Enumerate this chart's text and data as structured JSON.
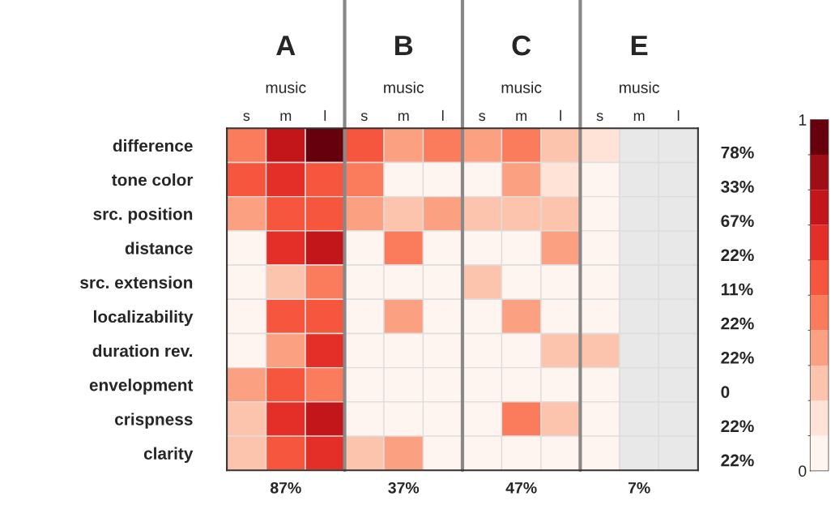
{
  "chart_data": {
    "type": "heatmap",
    "categories": [
      "s",
      "m",
      "l",
      "s",
      "m",
      "l",
      "s",
      "m",
      "l",
      "s",
      "m",
      "l"
    ],
    "y_categories": [
      "difference",
      "tone color",
      "src. position",
      "distance",
      "src. extension",
      "localizability",
      "duration rev.",
      "envelopment",
      "crispness",
      "clarity"
    ],
    "y2_categories": [
      "78%",
      "33%",
      "67%",
      "22%",
      "11%",
      "22%",
      "22%",
      "0",
      "22%",
      "22%"
    ],
    "cells": [
      [
        0.45,
        0.75,
        0.95,
        0.55,
        0.35,
        0.45,
        0.35,
        0.45,
        0.25,
        0.15,
        null,
        null
      ],
      [
        0.55,
        0.65,
        0.55,
        0.45,
        0,
        0,
        0,
        0.35,
        0.15,
        0,
        null,
        null
      ],
      [
        0.35,
        0.55,
        0.55,
        0.35,
        0.25,
        0.35,
        0.25,
        0.25,
        0.25,
        0,
        null,
        null
      ],
      [
        0,
        0.65,
        0.75,
        0,
        0.45,
        0,
        0,
        0,
        0.35,
        0,
        null,
        null
      ],
      [
        0,
        0.25,
        0.45,
        0,
        0,
        0,
        0.25,
        0,
        0,
        0,
        null,
        null
      ],
      [
        0,
        0.55,
        0.55,
        0,
        0.35,
        0,
        0,
        0.35,
        0,
        0,
        null,
        null
      ],
      [
        0,
        0.35,
        0.65,
        0,
        0,
        0,
        0,
        0,
        0.25,
        0.25,
        null,
        null
      ],
      [
        0.35,
        0.55,
        0.45,
        0,
        0,
        0,
        0,
        0,
        0,
        0,
        null,
        null
      ],
      [
        0.25,
        0.65,
        0.75,
        0,
        0,
        0,
        0,
        0.45,
        0.25,
        0,
        null,
        null
      ],
      [
        0.25,
        0.55,
        0.65,
        0.25,
        0.35,
        0,
        0,
        0,
        0,
        0,
        null,
        null
      ]
    ],
    "clim": [
      0,
      1
    ],
    "cticks": [
      0,
      1
    ],
    "annotations": [
      "A",
      "B",
      "C",
      "E",
      "music",
      "music",
      "music",
      "music",
      "87%",
      "37%",
      "47%",
      "7%"
    ]
  }
}
